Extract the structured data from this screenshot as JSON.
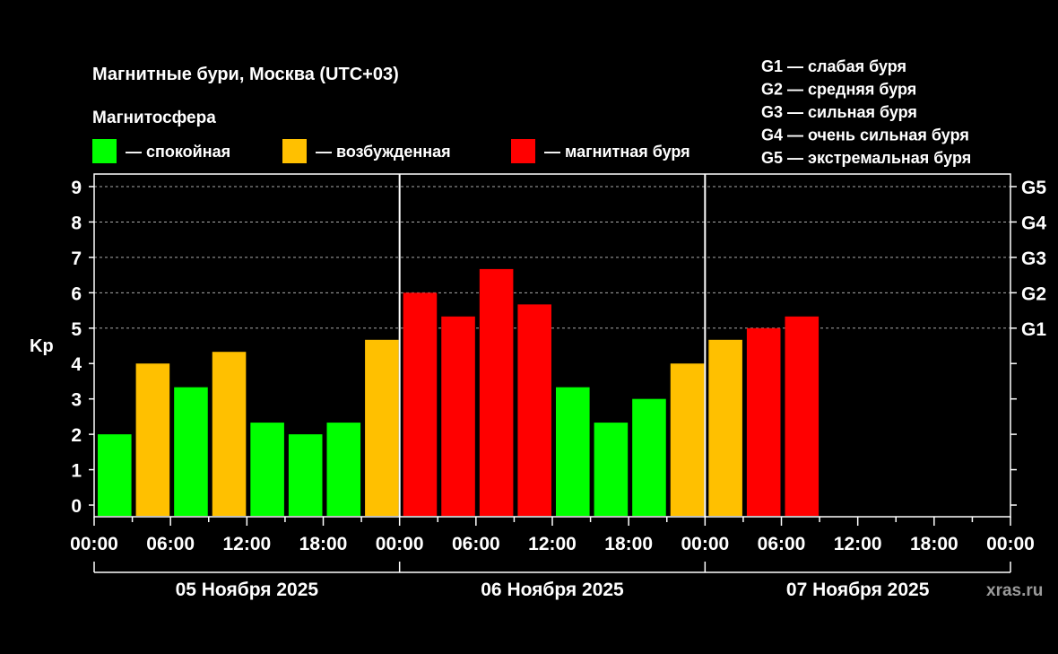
{
  "chart_data": {
    "type": "bar",
    "title": "Магнитные бури, Москва (UTC+03)",
    "legend_title": "Магнитосфера",
    "legend": [
      {
        "label": "— спокойная",
        "color": "#00ff00"
      },
      {
        "label": "— возбужденная",
        "color": "#ffc000"
      },
      {
        "label": "— магнитная буря",
        "color": "#ff0000"
      }
    ],
    "g_legend": [
      "G1 — слабая буря",
      "G2 — средняя буря",
      "G3 — сильная буря",
      "G4 — очень сильная буря",
      "G5 — экстремальная буря"
    ],
    "ylabel": "Kp",
    "ylim": [
      0,
      9
    ],
    "yticks": [
      "0",
      "1",
      "2",
      "3",
      "4",
      "5",
      "6",
      "7",
      "8",
      "9"
    ],
    "right_ticks": [
      {
        "value": 5,
        "label": "G1"
      },
      {
        "value": 6,
        "label": "G2"
      },
      {
        "value": 7,
        "label": "G3"
      },
      {
        "value": 8,
        "label": "G4"
      },
      {
        "value": 9,
        "label": "G5"
      }
    ],
    "xtick_labels": [
      "00:00",
      "06:00",
      "12:00",
      "18:00",
      "00:00",
      "06:00",
      "12:00",
      "18:00",
      "00:00",
      "06:00",
      "12:00",
      "18:00",
      "00:00"
    ],
    "days": [
      "05 Ноября 2025",
      "06 Ноября 2025",
      "07 Ноября 2025"
    ],
    "interval_hours": 3,
    "values": [
      2.0,
      4.0,
      3.33,
      4.33,
      2.33,
      2.0,
      2.33,
      4.67,
      6.0,
      5.33,
      6.67,
      5.67,
      3.33,
      2.33,
      3.0,
      4.0,
      4.67,
      5.0,
      5.33
    ],
    "colors": [
      "#00ff00",
      "#ffc000",
      "#00ff00",
      "#ffc000",
      "#00ff00",
      "#00ff00",
      "#00ff00",
      "#ffc000",
      "#ff0000",
      "#ff0000",
      "#ff0000",
      "#ff0000",
      "#00ff00",
      "#00ff00",
      "#00ff00",
      "#ffc000",
      "#ffc000",
      "#ff0000",
      "#ff0000"
    ],
    "grid": "dashed horizontal at 5-9"
  },
  "watermark": "xras.ru"
}
